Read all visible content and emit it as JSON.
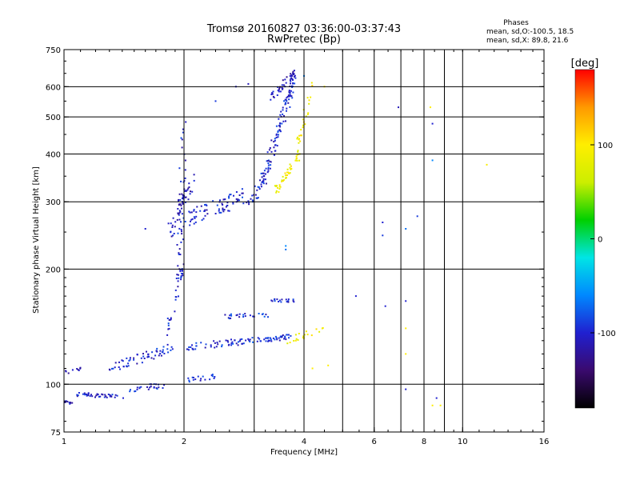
{
  "chart_data": {
    "type": "scatter",
    "title": "Tromsø 20160827 03:36:00-03:37:43",
    "subtitle": "RwPretec (Bp)",
    "xlabel": "Frequency [MHz]",
    "ylabel": "Stationary phase Virtual Height [km]",
    "x_scale": "log",
    "y_scale": "log",
    "xlim": [
      1,
      16
    ],
    "ylim": [
      75,
      750
    ],
    "x_ticks": [
      1,
      2,
      4,
      6,
      8,
      10,
      16
    ],
    "x_ticks_labels": [
      "1",
      "2",
      "4",
      "6",
      "8",
      "10",
      "16"
    ],
    "y_ticks": [
      75,
      100,
      200,
      300,
      400,
      500,
      600,
      750
    ],
    "y_ticks_labels": [
      "75",
      "100",
      "200",
      "300",
      "400",
      "500",
      "600",
      "750"
    ],
    "grid": true,
    "phase_stats": {
      "heading": "Phases",
      "line_o": "mean, sd,O:-100.5, 18.5",
      "line_x": "mean, sd,X:  89.8, 21.6"
    },
    "colorbar": {
      "label": "[deg]",
      "ticks": [
        100,
        0,
        -100
      ],
      "ticks_labels": [
        "100",
        "0",
        "-100"
      ],
      "range": [
        -180,
        180
      ],
      "colors": [
        "#000000",
        "#3a0a6e",
        "#2020d0",
        "#0088ff",
        "#00e5e5",
        "#00d000",
        "#ccee00",
        "#ffee00",
        "#ff9900",
        "#ff0000"
      ]
    },
    "series": [
      {
        "color_role": "o-mode",
        "segments": [
          {
            "x0": 1.0,
            "x1": 1.05,
            "y0": 90,
            "y1": 89,
            "n": 10,
            "jitter": 0.008,
            "phase": -110
          },
          {
            "x0": 1.05,
            "x1": 1.45,
            "y0": 94,
            "y1": 93,
            "n": 40,
            "jitter": 0.012,
            "phase": -105
          },
          {
            "x0": 1.45,
            "x1": 1.8,
            "y0": 96,
            "y1": 100,
            "n": 25,
            "jitter": 0.02,
            "phase": -100
          },
          {
            "x0": 1.0,
            "x1": 1.1,
            "y0": 107,
            "y1": 110,
            "n": 10,
            "jitter": 0.01,
            "phase": -110
          },
          {
            "x0": 1.3,
            "x1": 1.9,
            "y0": 110,
            "y1": 125,
            "n": 60,
            "jitter": 0.03,
            "phase": -100
          },
          {
            "x0": 1.8,
            "x1": 1.98,
            "y0": 130,
            "y1": 200,
            "n": 30,
            "jitter": 0.04,
            "phase": -100
          },
          {
            "x0": 1.95,
            "x1": 2.0,
            "y0": 200,
            "y1": 480,
            "n": 45,
            "jitter": 0.08,
            "phase": -100
          },
          {
            "x0": 1.85,
            "x1": 2.1,
            "y0": 250,
            "y1": 340,
            "n": 50,
            "jitter": 0.06,
            "phase": -110
          },
          {
            "x0": 2.0,
            "x1": 2.4,
            "y0": 102,
            "y1": 105,
            "n": 18,
            "jitter": 0.015,
            "phase": -95
          },
          {
            "x0": 2.0,
            "x1": 3.0,
            "y0": 125,
            "y1": 130,
            "n": 55,
            "jitter": 0.02,
            "phase": -95
          },
          {
            "x0": 3.0,
            "x1": 3.7,
            "y0": 130,
            "y1": 133,
            "n": 40,
            "jitter": 0.015,
            "phase": -95
          },
          {
            "x0": 2.5,
            "x1": 3.3,
            "y0": 150,
            "y1": 152,
            "n": 25,
            "jitter": 0.015,
            "phase": -95
          },
          {
            "x0": 3.3,
            "x1": 3.8,
            "y0": 166,
            "y1": 165,
            "n": 18,
            "jitter": 0.01,
            "phase": -100
          },
          {
            "x0": 2.0,
            "x1": 3.1,
            "y0": 270,
            "y1": 320,
            "n": 90,
            "jitter": 0.05,
            "phase": -100
          },
          {
            "x0": 3.1,
            "x1": 3.8,
            "y0": 320,
            "y1": 640,
            "n": 120,
            "jitter": 0.05,
            "phase": -100
          },
          {
            "x0": 3.3,
            "x1": 3.8,
            "y0": 560,
            "y1": 650,
            "n": 40,
            "jitter": 0.03,
            "phase": -110
          }
        ]
      },
      {
        "color_role": "x-mode",
        "segments": [
          {
            "x0": 3.4,
            "x1": 3.9,
            "y0": 320,
            "y1": 400,
            "n": 45,
            "jitter": 0.03,
            "phase": 90
          },
          {
            "x0": 3.8,
            "x1": 4.2,
            "y0": 400,
            "y1": 600,
            "n": 25,
            "jitter": 0.04,
            "phase": 95
          },
          {
            "x0": 3.6,
            "x1": 4.5,
            "y0": 130,
            "y1": 140,
            "n": 20,
            "jitter": 0.02,
            "phase": 90
          }
        ]
      },
      {
        "color_role": "isolated",
        "points": [
          {
            "x": 1.6,
            "y": 255,
            "phase": -100
          },
          {
            "x": 2.4,
            "y": 550,
            "phase": -90
          },
          {
            "x": 2.7,
            "y": 600,
            "phase": -100
          },
          {
            "x": 2.9,
            "y": 610,
            "phase": -110
          },
          {
            "x": 3.6,
            "y": 230,
            "phase": -60
          },
          {
            "x": 3.6,
            "y": 225,
            "phase": -70
          },
          {
            "x": 4.0,
            "y": 640,
            "phase": -60
          },
          {
            "x": 4.5,
            "y": 600,
            "phase": 100
          },
          {
            "x": 5.4,
            "y": 170,
            "phase": -100
          },
          {
            "x": 6.3,
            "y": 265,
            "phase": -100
          },
          {
            "x": 6.3,
            "y": 245,
            "phase": -90
          },
          {
            "x": 6.4,
            "y": 160,
            "phase": -100
          },
          {
            "x": 6.9,
            "y": 530,
            "phase": -110
          },
          {
            "x": 7.2,
            "y": 255,
            "phase": -70
          },
          {
            "x": 7.2,
            "y": 165,
            "phase": -100
          },
          {
            "x": 7.2,
            "y": 140,
            "phase": 100
          },
          {
            "x": 7.2,
            "y": 120,
            "phase": 100
          },
          {
            "x": 7.2,
            "y": 97,
            "phase": -100
          },
          {
            "x": 7.7,
            "y": 275,
            "phase": -90
          },
          {
            "x": 8.3,
            "y": 530,
            "phase": 100
          },
          {
            "x": 8.4,
            "y": 480,
            "phase": -100
          },
          {
            "x": 8.4,
            "y": 385,
            "phase": -60
          },
          {
            "x": 8.4,
            "y": 88,
            "phase": 100
          },
          {
            "x": 8.8,
            "y": 88,
            "phase": 100
          },
          {
            "x": 8.6,
            "y": 92,
            "phase": -100
          },
          {
            "x": 11.5,
            "y": 375,
            "phase": 95
          },
          {
            "x": 4.6,
            "y": 112,
            "phase": 100
          },
          {
            "x": 4.2,
            "y": 110,
            "phase": 100
          }
        ]
      }
    ]
  }
}
